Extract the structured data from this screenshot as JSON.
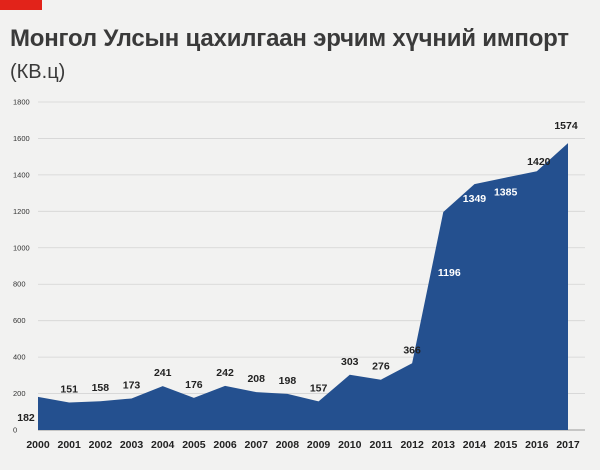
{
  "header": {
    "title": "Монгол Улсын цахилгаан эрчим хүчний импорт",
    "subtitle": "(КВ.ц)"
  },
  "colors": {
    "accent": "#e2231a",
    "area": "#24508f",
    "grid": "#d4d4d4",
    "background": "#f2f2f1"
  },
  "chart_data": {
    "type": "area",
    "title": "Монгол Улсын цахилгаан эрчим хүчний импорт",
    "subtitle": "(КВ.ц)",
    "xlabel": "",
    "ylabel": "",
    "x": [
      "2000",
      "2001",
      "2002",
      "2003",
      "2004",
      "2005",
      "2006",
      "2007",
      "2008",
      "2009",
      "2010",
      "2011",
      "2012",
      "2013",
      "2014",
      "2015",
      "2016",
      "2017"
    ],
    "series": [
      {
        "values": [
          182,
          151,
          158,
          173,
          241,
          176,
          242,
          208,
          198,
          157,
          303,
          276,
          366,
          1196,
          1349,
          1385,
          1420,
          1574
        ],
        "color": "#24508f"
      }
    ],
    "ylim": [
      0,
      1800
    ],
    "yticks": [
      0,
      200,
      400,
      600,
      800,
      1000,
      1200,
      1400,
      1600,
      1800
    ],
    "grid": true,
    "legend": "none"
  }
}
